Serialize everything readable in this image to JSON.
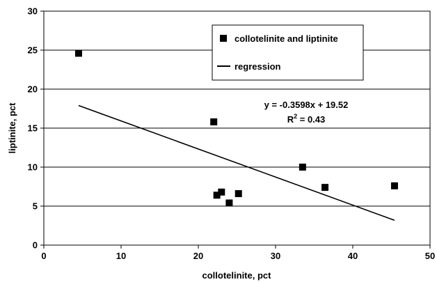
{
  "chart_data": {
    "type": "scatter",
    "xlabel": "collotelinite, pct",
    "ylabel": "liptinite, pct",
    "xlim": [
      0,
      50
    ],
    "ylim": [
      0,
      30
    ],
    "x_ticks": [
      0,
      10,
      20,
      30,
      40,
      50
    ],
    "y_ticks": [
      0,
      5,
      10,
      15,
      20,
      25,
      30
    ],
    "grid": "horizontal",
    "legend_position": "top-right",
    "series": [
      {
        "name": "collotelinite and liptinite",
        "marker": "square",
        "color": "#000000",
        "points": [
          {
            "x": 4.5,
            "y": 24.6
          },
          {
            "x": 22.0,
            "y": 15.8
          },
          {
            "x": 22.4,
            "y": 6.4
          },
          {
            "x": 23.0,
            "y": 6.8
          },
          {
            "x": 24.0,
            "y": 5.4
          },
          {
            "x": 25.2,
            "y": 6.6
          },
          {
            "x": 33.5,
            "y": 10.0
          },
          {
            "x": 36.4,
            "y": 7.4
          },
          {
            "x": 45.4,
            "y": 7.6
          }
        ]
      },
      {
        "name": "regression",
        "type": "line",
        "color": "#000000",
        "slope": -0.3598,
        "intercept": 19.52,
        "x_range": [
          4.5,
          45.4
        ]
      }
    ],
    "annotations": {
      "equation": "y = -0.3598x + 19.52",
      "r2_prefix": "R",
      "r2_sup": "2",
      "r2_suffix": " = 0.43"
    }
  }
}
